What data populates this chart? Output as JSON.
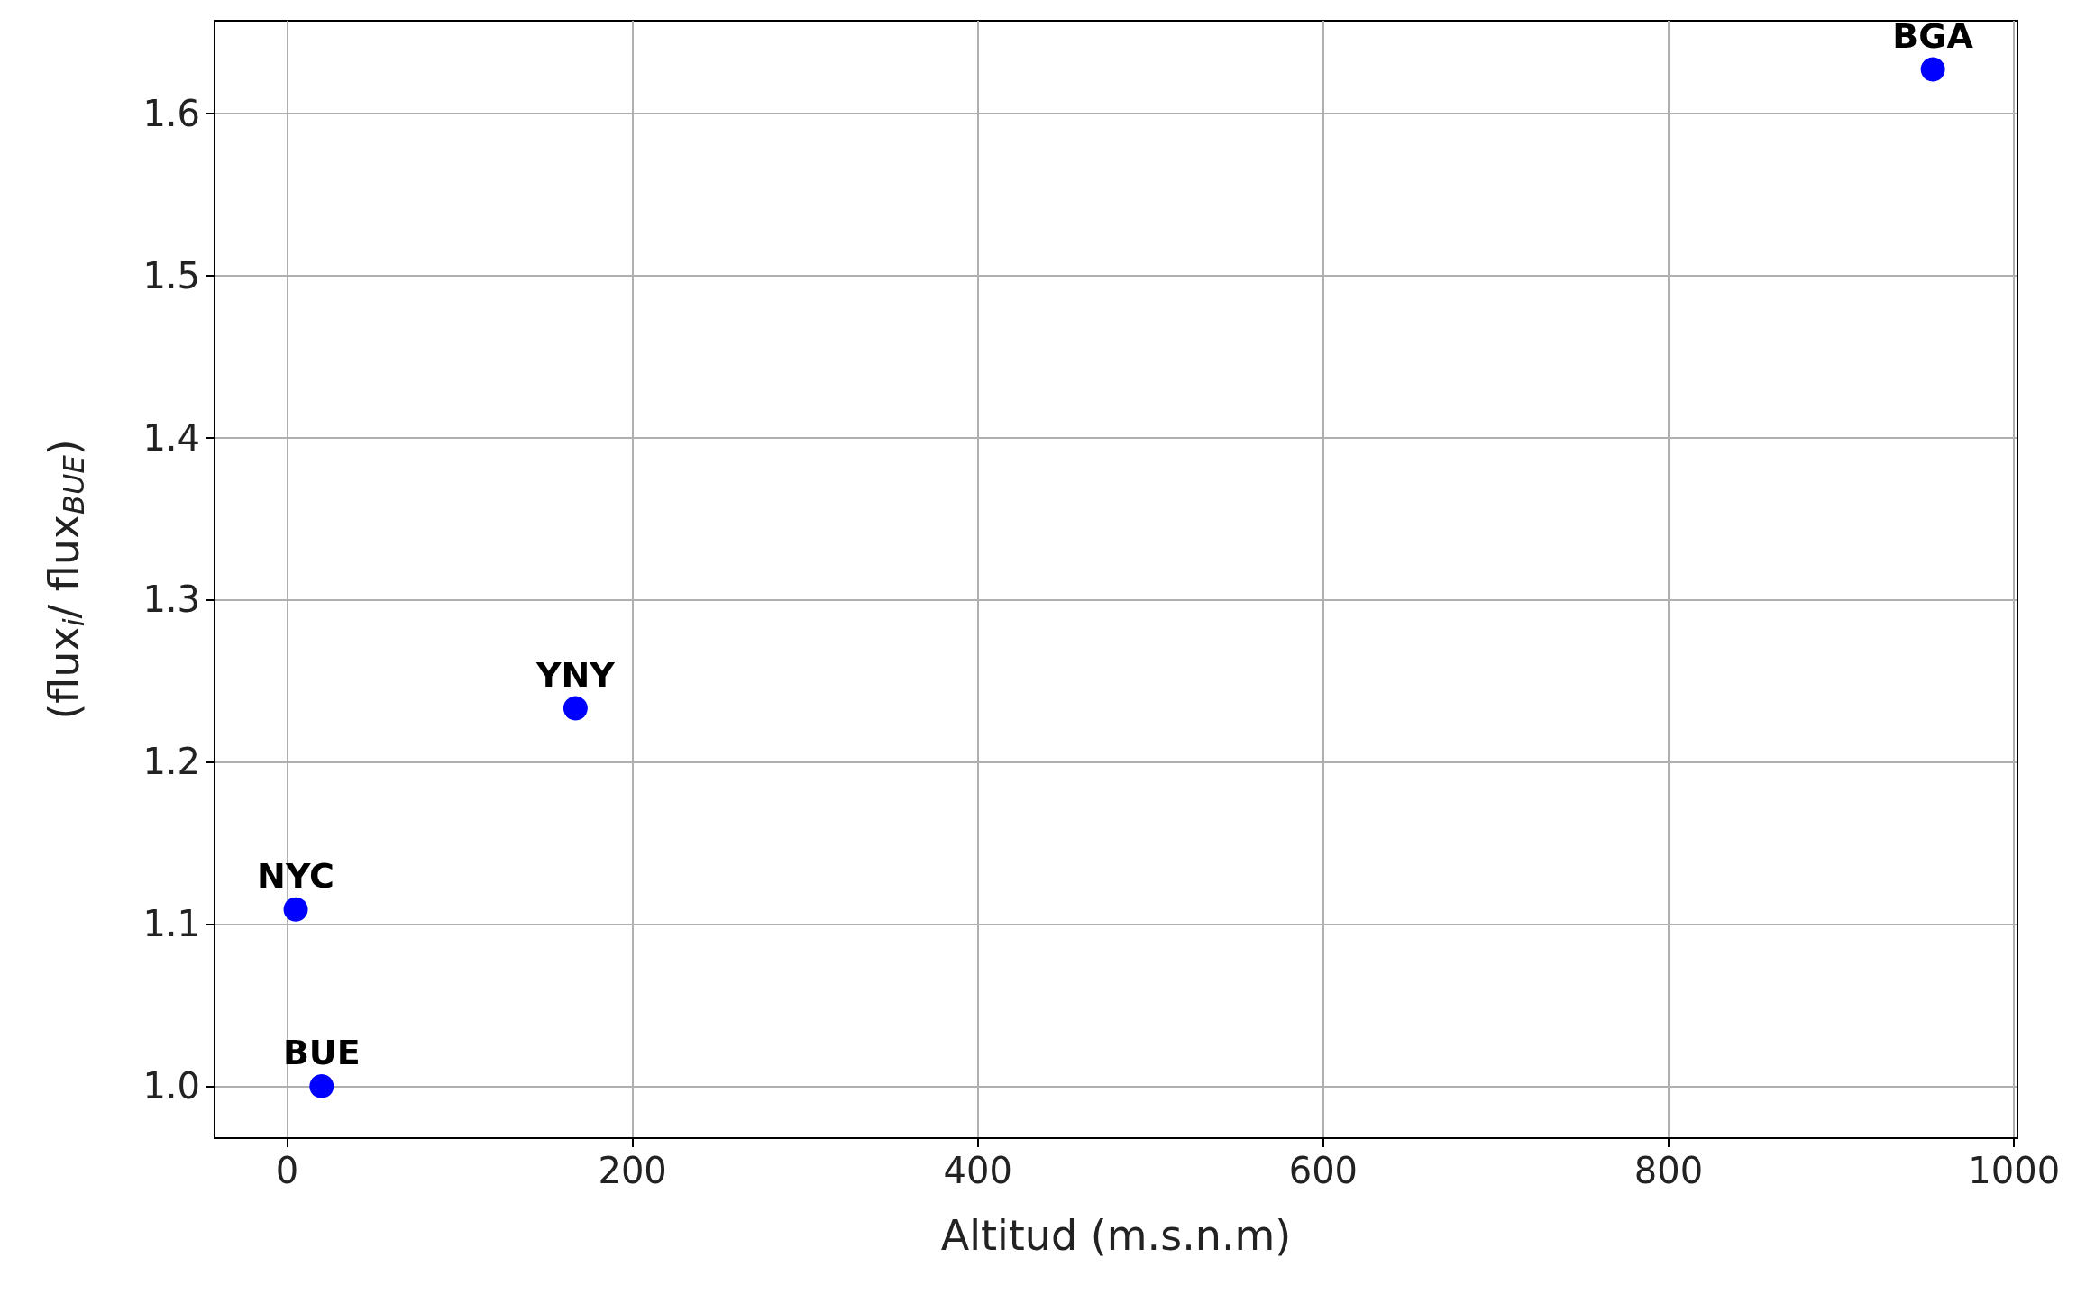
{
  "chart_data": {
    "type": "scatter",
    "xlabel": "Altitud (m.s.n.m)",
    "ylabel": "(flux$_{i}$/ flux$_{BUE}$)",
    "x": [
      20,
      5,
      167,
      953
    ],
    "series": [
      {
        "color": "#0000ff",
        "values": [
          1.0,
          1.109,
          1.233,
          1.627
        ]
      }
    ],
    "xlim": [
      -42,
      1002
    ],
    "ylim": [
      0.968,
      1.657
    ],
    "xticks": [
      0,
      200,
      400,
      600,
      800,
      1000
    ],
    "yticks": [
      {
        "value": 1,
        "label": "1.0"
      },
      1.1,
      1.2,
      1.3,
      1.4,
      1.5,
      1.6
    ],
    "grid": true,
    "marker": "circle",
    "annotations": [
      {
        "text": "BUE",
        "x": 20,
        "y": 1.0
      },
      {
        "text": "NYC",
        "x": 5,
        "y": 1.109
      },
      {
        "text": "YNY",
        "x": 167,
        "y": 1.233
      },
      {
        "text": "BGA",
        "x": 953,
        "y": 1.627
      }
    ]
  }
}
